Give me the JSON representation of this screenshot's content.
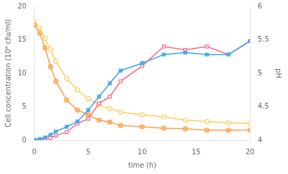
{
  "chart_data": {
    "type": "line",
    "xlabel": "time (h)",
    "ylabel": "Cell concentration (10⁶ cfu/ml)",
    "y2label": "pH",
    "x": [
      0,
      0.5,
      1,
      1.5,
      2,
      3,
      4,
      5,
      6,
      7,
      8,
      10,
      12,
      14,
      16,
      18,
      20
    ],
    "series": [
      {
        "marker": "square",
        "values": [
          0.05,
          0.15,
          0.4,
          0.8,
          1.3,
          2.0,
          2.8,
          4.5,
          6.5,
          8.5,
          10.4,
          11.5,
          12.8,
          13.1,
          12.8,
          12.8,
          14.8
        ]
      },
      {
        "marker": "square-open",
        "values": [
          0.02,
          0.05,
          0.15,
          0.35,
          0.7,
          1.2,
          2.5,
          3.2,
          5.5,
          6.5,
          8.8,
          11.1,
          14.0,
          13.5,
          14.0,
          12.8,
          14.8
        ]
      },
      {
        "marker": "circle",
        "axis": "y2",
        "values": [
          5.72,
          5.6,
          5.38,
          5.1,
          4.88,
          4.6,
          4.45,
          4.38,
          4.3,
          4.27,
          4.22,
          4.2,
          4.18,
          4.17,
          4.15,
          4.15,
          4.15
        ]
      },
      {
        "marker": "circle-open",
        "axis": "y2",
        "values": [
          5.77,
          5.68,
          5.52,
          5.35,
          5.18,
          4.92,
          4.75,
          4.62,
          4.53,
          4.47,
          4.42,
          4.38,
          4.35,
          4.3,
          4.28,
          4.26,
          4.25
        ]
      }
    ],
    "xlim": [
      0,
      20
    ],
    "xticks": [
      0,
      5,
      10,
      15,
      20
    ],
    "ylim": [
      0,
      20
    ],
    "yticks": [
      0,
      5,
      10,
      15,
      20
    ],
    "y2lim": [
      4,
      6
    ],
    "y2ticks": [
      4,
      4.5,
      5,
      5.5,
      6
    ],
    "grid": false
  }
}
